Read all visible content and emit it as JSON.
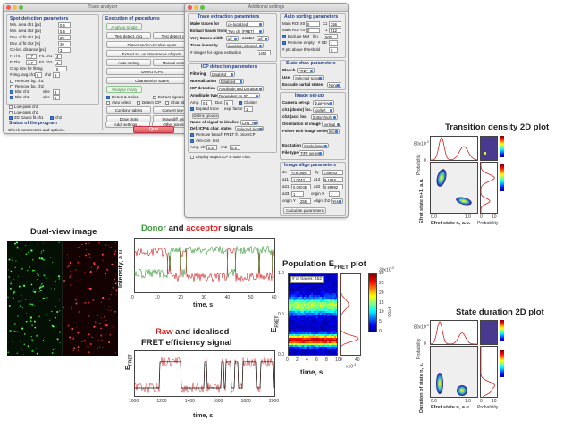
{
  "main_window": {
    "title": "Trace analyzer",
    "spot_panel": {
      "title": "Spot detection parameters",
      "rows": [
        {
          "label": "Min. area ch1 [px]",
          "value": "0.5"
        },
        {
          "label": "Min. area ch2 [px]",
          "value": "0.5"
        },
        {
          "label": "Dev. of fit ch1 [%]",
          "value": "20"
        },
        {
          "label": "Dev. of fit ch2 [%]",
          "value": "20"
        },
        {
          "label": "Co-loc. distance [px]",
          "value": "3"
        }
      ],
      "thr1_label": "F. Thr.",
      "thr1_value": "1.7",
      "fit1_label": "Fit. ch1",
      "fit1_value": "4",
      "thr2_label": "F. Thr.",
      "thr2_value": "1.7",
      "fit2_label": "Fit. ch2",
      "fit2_value": "4",
      "crop_label": "Crop size for fitting",
      "crop_value": "5",
      "img_label": "# img. avg ch1",
      "img_value": "9",
      "img_ch2_label": "ch2",
      "img_ch2_value": "9",
      "remove_bg1": "Remove bg. ch1",
      "remove_bg2": "Remove bg. ch2",
      "blur1": "Blur ch1",
      "blur1_size_label": "size",
      "blur1_size": "3",
      "blur2": "Blur ch2",
      "blur2_size_label": "size",
      "blur2_size": "3",
      "lowpass1": "Low-pass ch1",
      "lowpass2": "Low-pass ch2",
      "gauss": "2D Gauss fit ch1",
      "gauss_ch2": "ch2"
    },
    "status_panel": {
      "title": "Status of the program",
      "text": "Check parameters and options."
    },
    "exec_panel": {
      "title": "Execution of procedures",
      "analyse_single": "Analyse single",
      "test_ch1": "Test detect. ch1",
      "test_ch2": "Test detect. ch2",
      "detect_coloc": "Detect and co-localise spots",
      "extract_traces": "Extract int. vs. time traces of spots",
      "auto_sorting": "Auto sorting",
      "manual_sorting": "Manual sorting",
      "detect_icps": "Detect ICPs",
      "characterize": "Characterize states",
      "analyse_many": "Analyse many",
      "chk_detect_coloc": "Detect & Coloc.",
      "chk_extract": "Extract signals",
      "chk_auto_detect": "Auto select",
      "chk_detect_icp": "Detect ICP",
      "chk_char": "Char. states",
      "combine_tables": "Combine tables",
      "convert_txt": "Convert low-txt",
      "draw_plots": "Draw plots",
      "draw_diff_plots": "Draw diff. plots",
      "show_hide1": "Show/ hide",
      "show_hide2": "Show/ hide",
      "add_settings": "Add. settings ...",
      "other_panels": "Other panels",
      "quit": "Quit"
    }
  },
  "add_window": {
    "title": "Additional settings",
    "trace_panel": {
      "title": "Trace extraction parameters",
      "make_traces_label": "Make traces for",
      "make_traces_value": "co-localized",
      "extract_from_label": "Extract traces from",
      "extract_from_value": "Two ch. (FRET)",
      "very_gauss_label": "Very Gauss width",
      "very_gauss_value": "off",
      "center_label": "center",
      "center_value": "off",
      "trace_intensity_label": "Trace intensity",
      "trace_intensity_value": "gaussian integral",
      "signal_frames_label": "# images for signal extraction",
      "signal_frames_value": "1450"
    },
    "icp_panel": {
      "title": "ICP detection parameters",
      "filtering_label": "Filtering",
      "filtering_value": "Disabled",
      "normalization_label": "Normalization",
      "normalization_value": "Disabled",
      "icp_detection_label": "ICP detection",
      "icp_detection_value": "Amplitude and Duration",
      "amp_types_label": "Amplitude type",
      "amp_types_value": "Dependent on SD",
      "amp_label": "Amp.",
      "amp_value": "0.1",
      "dur_label": "Dur.",
      "dur_value": "6",
      "cluster_label": "Cluster",
      "expand_label": "Expand trace",
      "exp_factor_label": "exp. factor",
      "exp_factor_value": "1",
      "define_groups": "Define groups",
      "name_signal_label": "Name of signal to idealise",
      "name_signal_value": "CH1_A",
      "def_icp_label": "Def. ICP & char. states",
      "def_icp_value": "Selected signals",
      "remove_bleach": "Remove bleach FRET fr. prior ICP",
      "anti_corr": "Anti-corr. test",
      "amp_ch1_label": "Amp. ch1",
      "amp_ch1_value": "0.5",
      "ch2_label": "ch2",
      "ch2_value": "0.5",
      "display_output": "Display output ICP & state char."
    },
    "auto_panel": {
      "title": "Auto sorting parameters",
      "main_x0_label": "Main ROI X0",
      "main_x0": "0",
      "x1_label": "X1",
      "x1": "256",
      "main_y0_label": "Main ROI Y0",
      "main_y0": "0",
      "y1_label": "Y1",
      "y1": "512",
      "exclude_mm_label": "Exclude MM",
      "exclude_mm_lim_label": "lim.",
      "exclude_mm_value": "500",
      "remove_empty_label": "Remove empty",
      "sd_label": "# SD",
      "sd_value": "1",
      "pts_label": "# pts above threshold",
      "pts_value": "5"
    },
    "state_panel": {
      "title": "State char. parameters",
      "bleach_label": "Bleach",
      "bleach_value": "FRET",
      "use_label": "Use",
      "use_value": "Selected signals",
      "exclude_label": "Exclude partial states",
      "exclude_value": "None"
    },
    "image_panel": {
      "title": "Image set-up",
      "camera_label": "Camera set-up",
      "camera_value": "dual-view",
      "ch1_label": "ch1 (donor) loc.",
      "ch1_value": "top/left",
      "ch2_label": "ch2 (acc) loc.",
      "ch2_value": "bottom/right",
      "orient_label": "Orientation of image",
      "orient_value": "vertical",
      "folder_label": "Folder with image series",
      "folder_value": "two",
      "excitation_label": "Excitation",
      "excitation_value": "Single laser",
      "filetype_label": "File type",
      "filetype_value": "TIFF series"
    },
    "align_panel": {
      "title": "Image align parameters",
      "dx_label": "dx",
      "dx": "-0.91858",
      "dy_label": "dy",
      "dy": "0.86943",
      "a11_label": "a11",
      "a11": "1.0043",
      "a12_label": "a12",
      "a12": "9.1818",
      "a21_label": "a21",
      "a21": "0.00045",
      "a22_label": "a22",
      "a22": "0.99992",
      "a33_label": "a33",
      "a33": "1",
      "origin_x_label": "origin X",
      "origin_x": "1",
      "origin_y_label": "origin Y",
      "origin_y": "255",
      "align_label": "Align ch2",
      "align_value": "Yes",
      "calc": "Calculate parameters"
    }
  },
  "figures": {
    "dual_view_title": "Dual-view image",
    "signals_title_donor": "Donor",
    "signals_title_and": " and ",
    "signals_title_acc": "acceptor",
    "signals_title_rest": " signals",
    "signals_ylabel": "Intensity, a.u.",
    "signals_xlabel": "time, s",
    "signals_xticks": [
      "0",
      "10",
      "20",
      "30",
      "40",
      "50",
      "60"
    ],
    "fret_title_raw": "Raw",
    "fret_title_rest": " and idealised",
    "fret_title_line2": "FRET efficiency signal",
    "fret_ylabel": "E",
    "fret_ylabel_sub": "FRET",
    "fret_xlabel": "time, s",
    "fret_xticks": [
      "1000",
      "1200",
      "1400",
      "1600",
      "1800",
      "2000"
    ],
    "pop_title": "Population E",
    "pop_title_sub": "FRET",
    "pop_title_tail": " plot",
    "pop_traces_label": "# of traces: 452",
    "pop_ylabel": "E",
    "pop_ylabel_sub": "FRET",
    "pop_xlabel": "time, s",
    "pop_xticks": [
      "0",
      "2",
      "4",
      "6",
      "8",
      "10"
    ],
    "pop_yticks": [
      "0.0",
      "0.5",
      "1.0"
    ],
    "pop_side_label": "x10",
    "pop_side_exp": "-3",
    "pop_side_ticks": [
      "0",
      "40"
    ],
    "colorbar_label": "Prob.",
    "colorbar_exp": "30x10",
    "colorbar_exp_sup": "-3",
    "colorbar_ticks": [
      "30",
      "25",
      "20",
      "15",
      "10",
      "5",
      "0"
    ],
    "td_title": "Transition density 2D plot",
    "td_ylabel": "Efret state n+1, a.u.",
    "td_xlabel": "Efret state n, a.u.",
    "td_prob": "Probability",
    "td_top_ticks": [
      "80x10",
      "0"
    ],
    "td_top_exp": "-3",
    "td_xticks": [
      "0.0",
      "1.0"
    ],
    "td_prob_ticks": [
      "0",
      "10"
    ],
    "sd_title": "State duration 2D plot",
    "sd_ylabel": "Duration of state n, s.",
    "sd_xlabel": "Efret state n, a.u.",
    "sd_prob": "Probability",
    "sd_top_ticks": [
      "80x10",
      "0"
    ],
    "sd_top_exp": "-3",
    "sd_xticks": [
      "0.0",
      "1.0"
    ],
    "sd_prob_ticks": [
      "0",
      "10"
    ]
  },
  "colors": {
    "donor": "#3a9a3a",
    "acceptor": "#d22020",
    "title_blue": "#1f3f8f",
    "green_btn": "#2e8b2e",
    "quit": "#df5e5e"
  }
}
